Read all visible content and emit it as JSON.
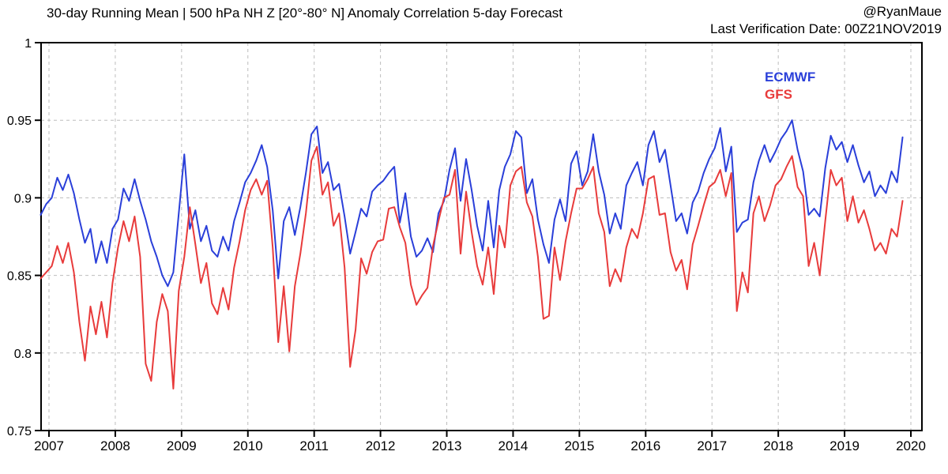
{
  "header": {
    "title": "30-day Running Mean | 500 hPa NH Z [20°-80° N] Anomaly Correlation 5-day Forecast",
    "attribution": "@RyanMaue",
    "verification": "Last Verification Date: 00Z21NOV2019"
  },
  "chart_data": {
    "type": "line",
    "title": "30-day Running Mean | 500 hPa NH Z [20°-80° N] Anomaly Correlation 5-day Forecast",
    "grid": "dashed",
    "legend_position": "top-right",
    "frame_color": "#000000",
    "grid_color": "#bdbdbd",
    "x_axis": {
      "ticks": [
        2007,
        2008,
        2009,
        2010,
        2011,
        2012,
        2013,
        2014,
        2015,
        2016,
        2017,
        2018,
        2019,
        2020
      ],
      "tick_labels": [
        "2007",
        "2008",
        "2009",
        "2010",
        "2011",
        "2012",
        "2013",
        "2014",
        "2015",
        "2016",
        "2017",
        "2018",
        "2019",
        "2020"
      ]
    },
    "y_axis": {
      "min": 0.75,
      "max": 1.0,
      "ticks": [
        1,
        0.95,
        0.9,
        0.85,
        0.8,
        0.75
      ],
      "tick_labels": [
        "1",
        "0.95",
        "0.9",
        "0.85",
        "0.8",
        "0.75"
      ]
    },
    "x_start": 2006.875,
    "x_step_years": 0.0833333,
    "series": [
      {
        "name": "ECMWF",
        "color": "#2a3fd9",
        "values": [
          0.889,
          0.896,
          0.9,
          0.913,
          0.905,
          0.915,
          0.903,
          0.886,
          0.871,
          0.88,
          0.858,
          0.872,
          0.858,
          0.88,
          0.886,
          0.906,
          0.898,
          0.912,
          0.898,
          0.886,
          0.872,
          0.862,
          0.85,
          0.843,
          0.852,
          0.89,
          0.928,
          0.88,
          0.892,
          0.872,
          0.882,
          0.866,
          0.862,
          0.875,
          0.866,
          0.885,
          0.897,
          0.91,
          0.916,
          0.924,
          0.934,
          0.92,
          0.892,
          0.848,
          0.885,
          0.894,
          0.876,
          0.894,
          0.916,
          0.941,
          0.946,
          0.916,
          0.923,
          0.905,
          0.909,
          0.888,
          0.864,
          0.878,
          0.893,
          0.888,
          0.904,
          0.908,
          0.911,
          0.916,
          0.92,
          0.884,
          0.903,
          0.875,
          0.862,
          0.866,
          0.874,
          0.865,
          0.89,
          0.898,
          0.918,
          0.932,
          0.898,
          0.925,
          0.905,
          0.882,
          0.866,
          0.898,
          0.868,
          0.905,
          0.92,
          0.928,
          0.943,
          0.939,
          0.903,
          0.912,
          0.886,
          0.87,
          0.858,
          0.886,
          0.899,
          0.885,
          0.922,
          0.93,
          0.908,
          0.917,
          0.941,
          0.917,
          0.902,
          0.877,
          0.89,
          0.88,
          0.908,
          0.916,
          0.923,
          0.908,
          0.934,
          0.943,
          0.923,
          0.931,
          0.908,
          0.885,
          0.89,
          0.877,
          0.897,
          0.904,
          0.916,
          0.925,
          0.932,
          0.945,
          0.917,
          0.933,
          0.878,
          0.884,
          0.886,
          0.91,
          0.924,
          0.934,
          0.923,
          0.93,
          0.938,
          0.943,
          0.95,
          0.931,
          0.917,
          0.889,
          0.893,
          0.888,
          0.919,
          0.94,
          0.931,
          0.936,
          0.923,
          0.934,
          0.921,
          0.91,
          0.917,
          0.901,
          0.908,
          0.903,
          0.917,
          0.91,
          0.939
        ]
      },
      {
        "name": "GFS",
        "color": "#e83b3b",
        "values": [
          0.848,
          0.852,
          0.856,
          0.869,
          0.858,
          0.871,
          0.852,
          0.82,
          0.795,
          0.83,
          0.812,
          0.833,
          0.81,
          0.845,
          0.868,
          0.885,
          0.872,
          0.888,
          0.862,
          0.793,
          0.782,
          0.82,
          0.838,
          0.827,
          0.777,
          0.84,
          0.862,
          0.894,
          0.87,
          0.845,
          0.858,
          0.832,
          0.825,
          0.842,
          0.828,
          0.855,
          0.872,
          0.892,
          0.905,
          0.912,
          0.902,
          0.911,
          0.868,
          0.807,
          0.843,
          0.801,
          0.843,
          0.864,
          0.89,
          0.924,
          0.933,
          0.902,
          0.91,
          0.882,
          0.89,
          0.855,
          0.791,
          0.815,
          0.861,
          0.851,
          0.865,
          0.872,
          0.873,
          0.893,
          0.894,
          0.881,
          0.871,
          0.844,
          0.831,
          0.837,
          0.842,
          0.869,
          0.885,
          0.9,
          0.902,
          0.918,
          0.864,
          0.904,
          0.878,
          0.856,
          0.844,
          0.868,
          0.838,
          0.882,
          0.868,
          0.908,
          0.917,
          0.92,
          0.897,
          0.888,
          0.862,
          0.822,
          0.824,
          0.868,
          0.847,
          0.872,
          0.89,
          0.906,
          0.906,
          0.912,
          0.92,
          0.89,
          0.878,
          0.843,
          0.854,
          0.846,
          0.868,
          0.88,
          0.874,
          0.89,
          0.912,
          0.914,
          0.889,
          0.89,
          0.865,
          0.853,
          0.86,
          0.841,
          0.87,
          0.882,
          0.895,
          0.907,
          0.91,
          0.918,
          0.901,
          0.916,
          0.827,
          0.852,
          0.839,
          0.89,
          0.901,
          0.885,
          0.895,
          0.908,
          0.912,
          0.92,
          0.927,
          0.907,
          0.901,
          0.856,
          0.871,
          0.85,
          0.885,
          0.918,
          0.908,
          0.913,
          0.885,
          0.901,
          0.884,
          0.892,
          0.88,
          0.866,
          0.871,
          0.864,
          0.88,
          0.875,
          0.898
        ]
      }
    ]
  }
}
